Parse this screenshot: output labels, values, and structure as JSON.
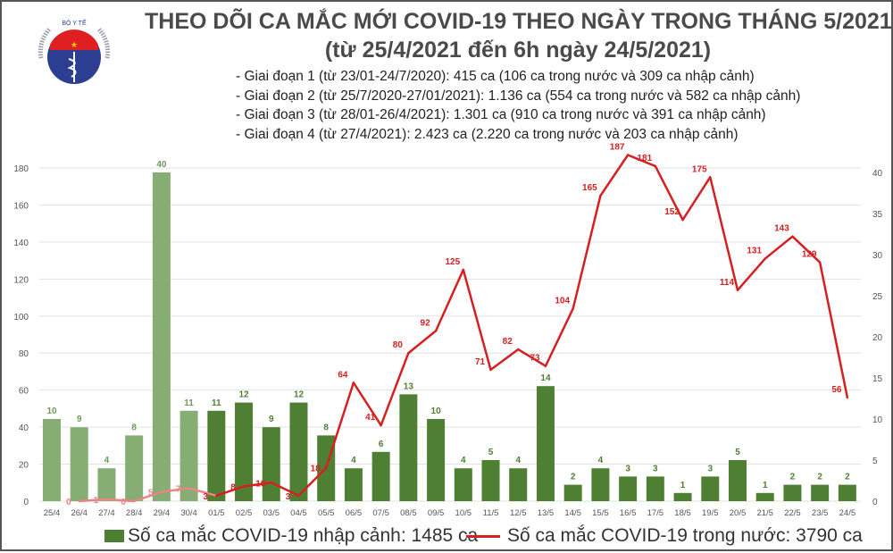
{
  "header": {
    "title_line1": "THEO DÕI CA MẮC MỚI COVID-19 THEO NGÀY TRONG THÁNG 5/2021",
    "title_line2": "(từ 25/4/2021 đến 6h ngày 24/5/2021)",
    "notes": [
      "- Giai đoạn 1 (từ 23/01-24/7/2020): 415 ca (106 ca trong nước và 309 ca nhập cảnh)",
      "- Giai đoạn 2 (từ 25/7/2020-27/01/2021): 1.136 ca (554 ca trong nước và 582 ca nhập cảnh)",
      "- Giai đoạn 3 (từ 28/01-26/4/2021): 1.301 ca (910 ca trong nước và 391 ca nhập cảnh)",
      "- Giai đoạn 4 (từ 27/4/2021): 2.423 ca (2.220 ca trong nước và 203 ca nhập cảnh)"
    ]
  },
  "logo": {
    "text_top": "BỘ Y TẾ",
    "text_bottom": "MINISTRY OF HEALTH"
  },
  "chart_data": {
    "type": "bar+line",
    "categories": [
      "25/4",
      "26/4",
      "27/4",
      "28/4",
      "29/4",
      "30/4",
      "01/5",
      "02/5",
      "03/5",
      "04/5",
      "05/5",
      "06/5",
      "07/5",
      "08/5",
      "09/5",
      "10/5",
      "11/5",
      "12/5",
      "13/5",
      "14/5",
      "15/5",
      "16/5",
      "17/5",
      "18/5",
      "19/5",
      "20/5",
      "21/5",
      "22/5",
      "23/5",
      "24/5"
    ],
    "series": [
      {
        "name": "Số ca mắc COVID-19 nhập cảnh: 1485 ca",
        "type": "bar",
        "axis": "right",
        "values": [
          10,
          9,
          4,
          8,
          40,
          11,
          11,
          12,
          9,
          12,
          8,
          4,
          6,
          13,
          10,
          4,
          5,
          4,
          14,
          2,
          4,
          3,
          3,
          1,
          3,
          5,
          1,
          2,
          2,
          2
        ],
        "color": "#4f7f33",
        "color_early": "#85ad74"
      },
      {
        "name": "Số ca mắc COVID-19 trong nước: 3790 ca",
        "type": "line",
        "axis": "left",
        "values": [
          null,
          0,
          1,
          0,
          5,
          7,
          3,
          8,
          10,
          3,
          18,
          64,
          41,
          80,
          92,
          125,
          71,
          82,
          73,
          104,
          165,
          187,
          181,
          152,
          175,
          114,
          131,
          143,
          129,
          56
        ],
        "color": "#d42020",
        "color_early": "#e98585"
      }
    ],
    "y_left": {
      "ylim": [
        0,
        180
      ],
      "ticks": [
        0,
        20,
        40,
        60,
        80,
        100,
        120,
        140,
        160,
        180
      ]
    },
    "y_right": {
      "ylim": [
        0,
        40
      ],
      "ticks": [
        0,
        5,
        10,
        15,
        20,
        25,
        30,
        35,
        40
      ]
    },
    "grid": true,
    "legend": "bottom"
  }
}
